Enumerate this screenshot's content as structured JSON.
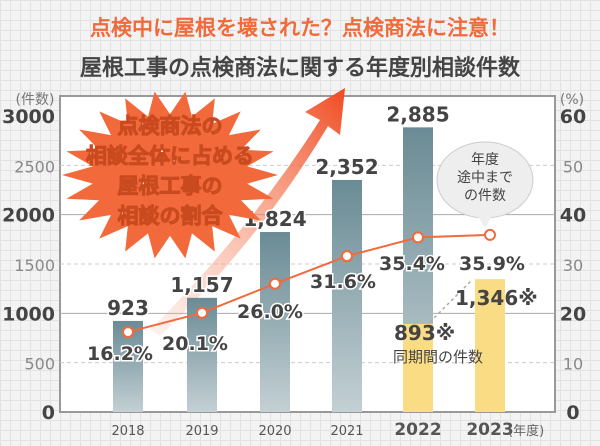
{
  "title": "点検中に屋根を壊された？点検商法に注意！",
  "subtitle": "屋根工事の点検商法に関する年度別相談件数",
  "callout": [
    "点検商法の",
    "相談全体に占める",
    "屋根工事の",
    "相談の割合"
  ],
  "bubble": [
    "年度",
    "途中まで",
    "の件数"
  ],
  "same_period_label": "同期間の件数",
  "colors": {
    "bar": "#6f8f98",
    "bar_partial": "#f9dc84",
    "line": "#f26a3c",
    "title": "#f26a3c"
  },
  "chart_data": {
    "type": "bar+line",
    "categories": [
      "2018",
      "2019",
      "2020",
      "2021",
      "2022",
      "2023"
    ],
    "xlabel": "(年度)",
    "ylabel_left": "(件数)",
    "ylim_left": [
      0,
      3000
    ],
    "yticks_left": [
      0,
      500,
      1000,
      1500,
      2000,
      2500,
      3000
    ],
    "ylabel_right": "(%)",
    "ylim_right": [
      0,
      60
    ],
    "yticks_right": [
      0,
      10,
      20,
      30,
      40,
      50,
      60
    ],
    "bars": {
      "values": [
        923,
        1157,
        1824,
        2352,
        2885,
        null
      ],
      "labels": [
        "923",
        "1,157",
        "1,824",
        "2,352",
        "2,885",
        ""
      ]
    },
    "partial_bars": {
      "values": [
        null,
        null,
        null,
        null,
        893,
        1346
      ],
      "labels": [
        "",
        "",
        "",
        "",
        "893※",
        "1,346※"
      ]
    },
    "line": {
      "values": [
        16.2,
        20.1,
        26.0,
        31.6,
        35.4,
        35.9
      ],
      "labels": [
        "16.2%",
        "20.1%",
        "26.0%",
        "31.6%",
        "35.4%",
        "35.9%"
      ]
    },
    "grid": true
  }
}
